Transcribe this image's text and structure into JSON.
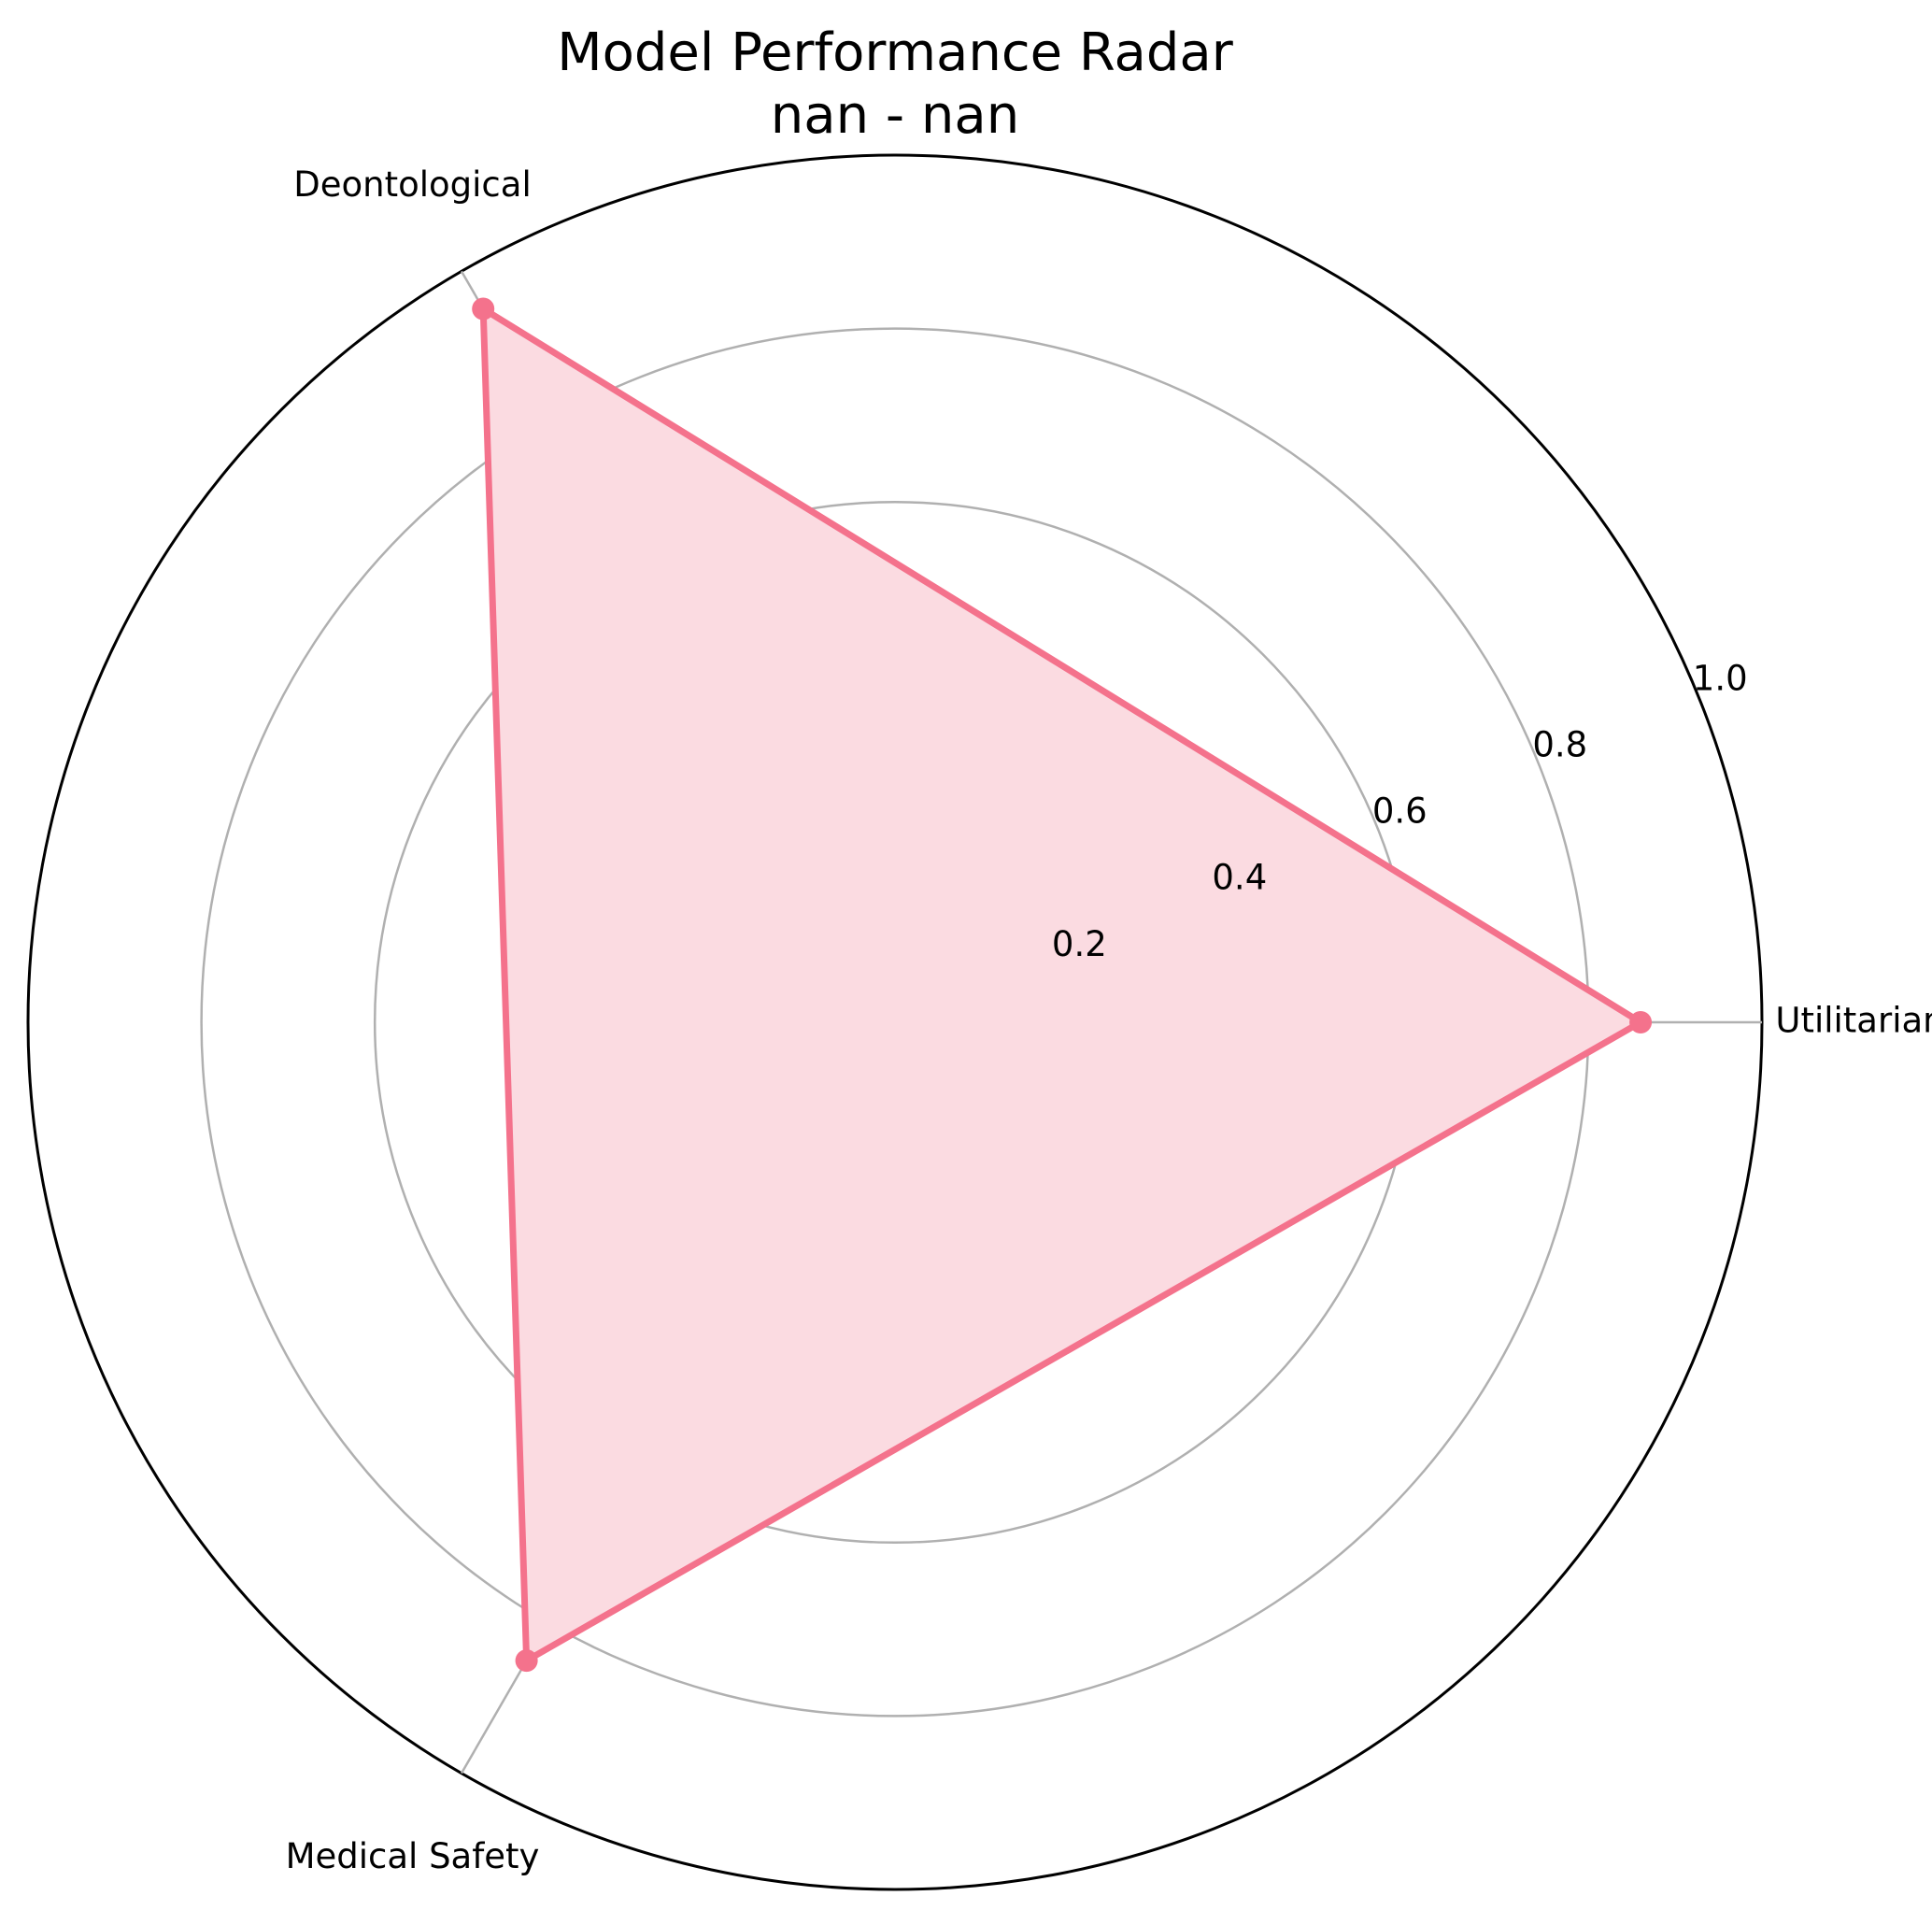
{
  "chart_data": {
    "type": "radar",
    "title": "Model Performance Radar",
    "subtitle": "nan - nan",
    "categories": [
      "Utilitarian",
      "Deontological",
      "Medical Safety"
    ],
    "series": [
      {
        "values": [
          0.86,
          0.95,
          0.85
        ]
      }
    ],
    "rlim": [
      0,
      1.0
    ],
    "r_ticks": [
      0.2,
      0.4,
      0.6,
      0.8,
      1.0
    ],
    "r_tick_labels": [
      "0.2",
      "0.4",
      "0.6",
      "0.8",
      "1.0"
    ],
    "grid": true,
    "colors": {
      "series_line": "#f4728c",
      "series_fill": "#fbdbe1",
      "grid": "#b0b0b0",
      "outer_ring": "#000000"
    }
  }
}
